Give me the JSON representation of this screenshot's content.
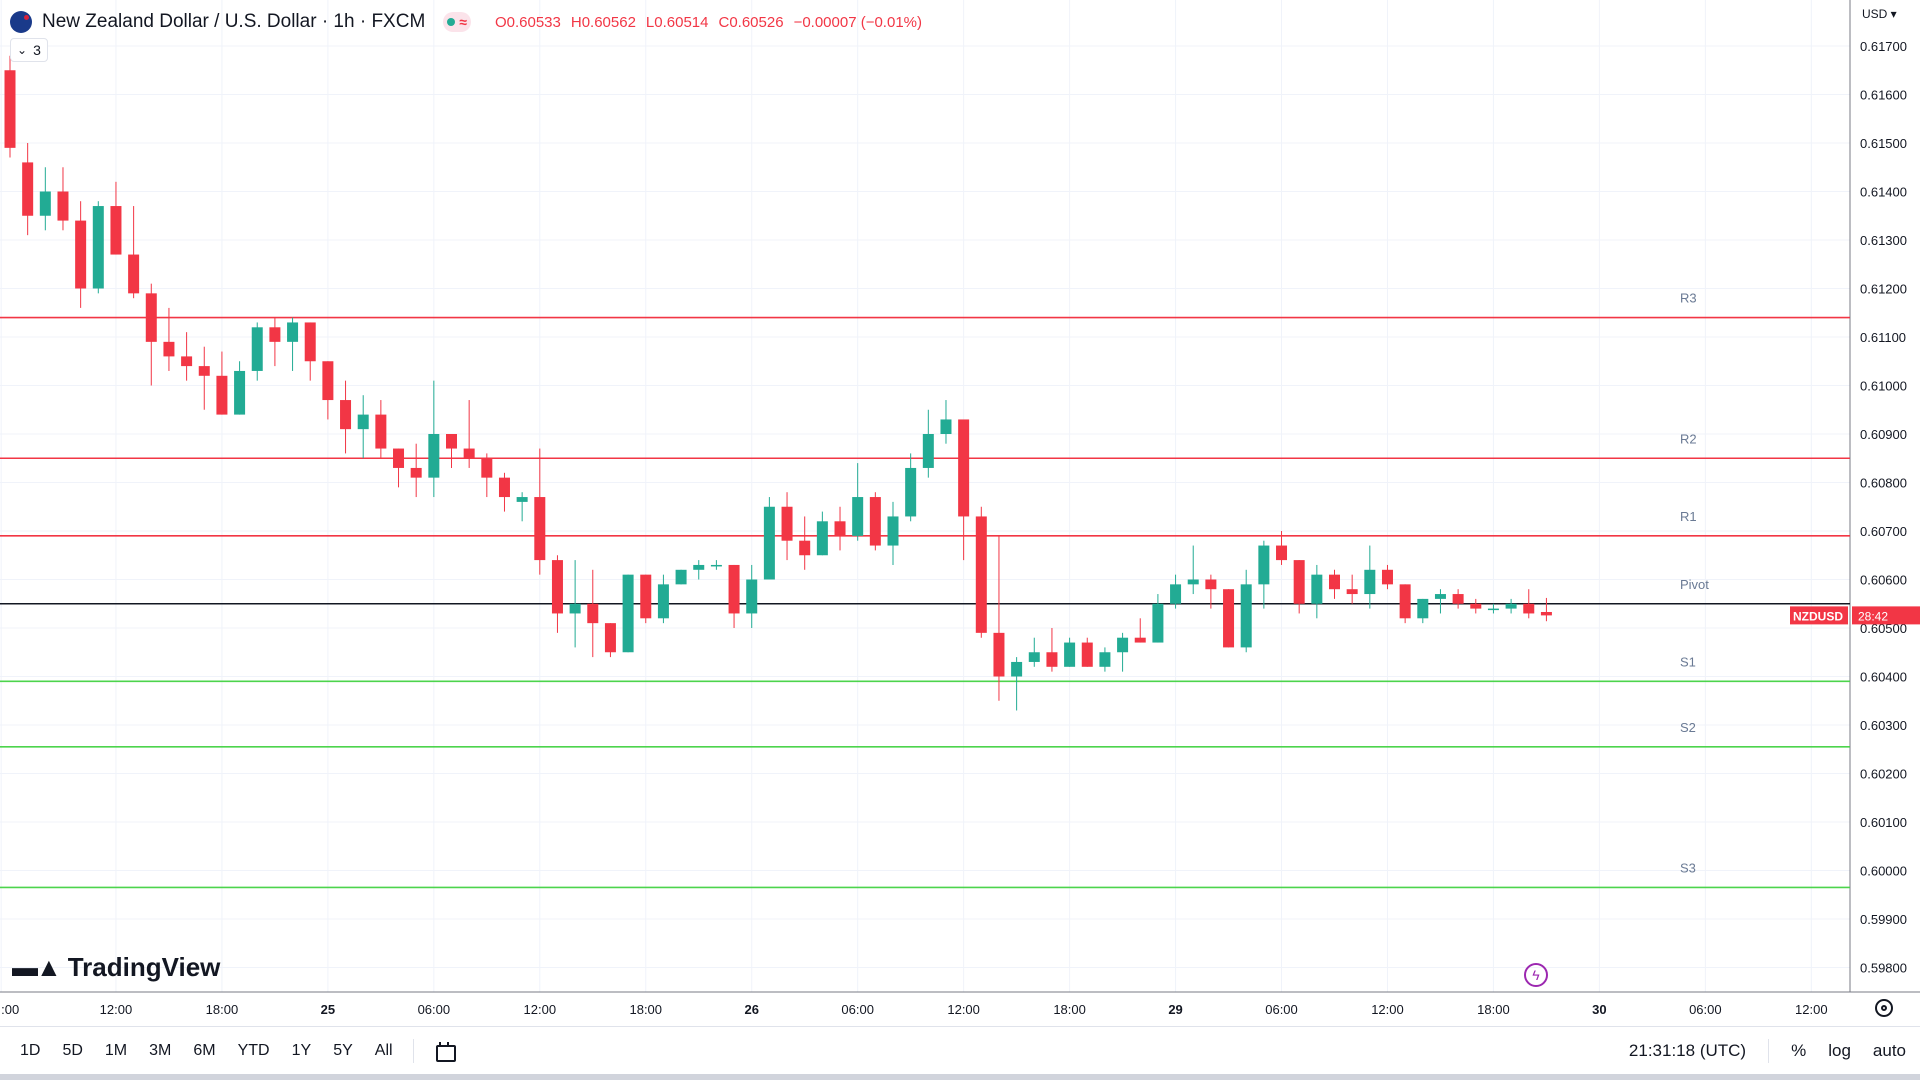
{
  "header": {
    "title": "New Zealand Dollar / U.S. Dollar · 1h · FXCM",
    "open": "O0.60533",
    "high": "H0.60562",
    "low": "L0.60514",
    "close": "C0.60526",
    "change": "−0.00007 (−0.01%)",
    "indicator_count": "3"
  },
  "price_scale": {
    "currency": "USD"
  },
  "brand": {
    "logo_text": "TradingView"
  },
  "colors": {
    "up": "#22ab94",
    "down": "#f23645",
    "resistance": "#f23645",
    "support": "#4cd44c",
    "pivot": "#131722",
    "grid": "#f0f3fa"
  },
  "toolbar": {
    "timeframes": [
      "1D",
      "5D",
      "1M",
      "3M",
      "6M",
      "YTD",
      "1Y",
      "5Y",
      "All"
    ],
    "clock": "21:31:18 (UTC)",
    "percent": "%",
    "log": "log",
    "auto": "auto"
  },
  "chart_data": {
    "type": "candlestick",
    "symbol": "NZDUSD",
    "interval": "1h",
    "grid": true,
    "y_axis": {
      "ylim": [
        0.5975,
        0.6177
      ],
      "ticks": [
        0.617,
        0.616,
        0.615,
        0.614,
        0.613,
        0.612,
        0.611,
        0.61,
        0.609,
        0.608,
        0.607,
        0.606,
        0.605,
        0.604,
        0.603,
        0.602,
        0.601,
        0.6,
        0.599,
        0.598
      ],
      "tick_labels": [
        "0.61700",
        "0.61600",
        "0.61500",
        "0.61400",
        "0.61300",
        "0.61200",
        "0.61100",
        "0.61000",
        "0.60900",
        "0.60800",
        "0.60700",
        "0.60600",
        "0.60500",
        "0.60400",
        "0.60300",
        "0.60200",
        "0.60100",
        "0.60000",
        "0.59900",
        "0.59800"
      ]
    },
    "x_axis": {
      "tick_labels": [
        {
          "label": ":00",
          "bar": -0.5
        },
        {
          "label": "12:00",
          "bar": 6
        },
        {
          "label": "18:00",
          "bar": 12
        },
        {
          "label": "25",
          "bar": 18
        },
        {
          "label": "06:00",
          "bar": 24
        },
        {
          "label": "12:00",
          "bar": 30
        },
        {
          "label": "18:00",
          "bar": 36
        },
        {
          "label": "26",
          "bar": 42
        },
        {
          "label": "06:00",
          "bar": 48
        },
        {
          "label": "12:00",
          "bar": 54
        },
        {
          "label": "18:00",
          "bar": 60
        },
        {
          "label": "29",
          "bar": 66
        },
        {
          "label": "06:00",
          "bar": 72
        },
        {
          "label": "12:00",
          "bar": 78
        },
        {
          "label": "18:00",
          "bar": 84
        },
        {
          "label": "30",
          "bar": 90
        },
        {
          "label": "06:00",
          "bar": 96
        },
        {
          "label": "12:00",
          "bar": 102
        }
      ]
    },
    "candles": [
      [
        0.6165,
        0.6168,
        0.6147,
        0.6149
      ],
      [
        0.6146,
        0.615,
        0.6131,
        0.6135
      ],
      [
        0.6135,
        0.6145,
        0.6132,
        0.614
      ],
      [
        0.614,
        0.6145,
        0.6132,
        0.6134
      ],
      [
        0.6134,
        0.6138,
        0.6116,
        0.612
      ],
      [
        0.612,
        0.6138,
        0.6119,
        0.6137
      ],
      [
        0.6137,
        0.6142,
        0.6127,
        0.6127
      ],
      [
        0.6127,
        0.6137,
        0.6118,
        0.6119
      ],
      [
        0.6119,
        0.6121,
        0.61,
        0.6109
      ],
      [
        0.6109,
        0.6116,
        0.6103,
        0.6106
      ],
      [
        0.6106,
        0.6111,
        0.6101,
        0.6104
      ],
      [
        0.6104,
        0.6108,
        0.6095,
        0.6102
      ],
      [
        0.6102,
        0.6107,
        0.6094,
        0.6094
      ],
      [
        0.6094,
        0.6105,
        0.6094,
        0.6103
      ],
      [
        0.6103,
        0.6113,
        0.6101,
        0.6112
      ],
      [
        0.6112,
        0.6114,
        0.6104,
        0.6109
      ],
      [
        0.6109,
        0.6114,
        0.6103,
        0.6113
      ],
      [
        0.6113,
        0.6113,
        0.6101,
        0.6105
      ],
      [
        0.6105,
        0.6105,
        0.6093,
        0.6097
      ],
      [
        0.6097,
        0.6101,
        0.6086,
        0.6091
      ],
      [
        0.6091,
        0.6098,
        0.6085,
        0.6094
      ],
      [
        0.6094,
        0.6097,
        0.6085,
        0.6087
      ],
      [
        0.6087,
        0.6087,
        0.6079,
        0.6083
      ],
      [
        0.6083,
        0.6088,
        0.6077,
        0.6081
      ],
      [
        0.6081,
        0.6101,
        0.6077,
        0.609
      ],
      [
        0.609,
        0.609,
        0.6083,
        0.6087
      ],
      [
        0.6087,
        0.6097,
        0.6083,
        0.6085
      ],
      [
        0.6085,
        0.6086,
        0.6077,
        0.6081
      ],
      [
        0.6081,
        0.6082,
        0.6074,
        0.6077
      ],
      [
        0.6076,
        0.6078,
        0.6072,
        0.6077
      ],
      [
        0.6077,
        0.6087,
        0.6061,
        0.6064
      ],
      [
        0.6064,
        0.6065,
        0.6049,
        0.6053
      ],
      [
        0.6053,
        0.6064,
        0.6046,
        0.6055
      ],
      [
        0.6055,
        0.6062,
        0.6044,
        0.6051
      ],
      [
        0.6051,
        0.6051,
        0.6044,
        0.6045
      ],
      [
        0.6045,
        0.6061,
        0.6045,
        0.6061
      ],
      [
        0.6061,
        0.6061,
        0.6051,
        0.6052
      ],
      [
        0.6052,
        0.6061,
        0.6051,
        0.6059
      ],
      [
        0.6059,
        0.6062,
        0.6059,
        0.6062
      ],
      [
        0.6062,
        0.6064,
        0.606,
        0.6063
      ],
      [
        0.6063,
        0.6064,
        0.6062,
        0.6063
      ],
      [
        0.6063,
        0.6063,
        0.605,
        0.6053
      ],
      [
        0.6053,
        0.6063,
        0.605,
        0.606
      ],
      [
        0.606,
        0.6077,
        0.606,
        0.6075
      ],
      [
        0.6075,
        0.6078,
        0.6064,
        0.6068
      ],
      [
        0.6068,
        0.6073,
        0.6062,
        0.6065
      ],
      [
        0.6065,
        0.6074,
        0.6065,
        0.6072
      ],
      [
        0.6072,
        0.6075,
        0.6066,
        0.6069
      ],
      [
        0.6069,
        0.6084,
        0.6068,
        0.6077
      ],
      [
        0.6077,
        0.6078,
        0.6066,
        0.6067
      ],
      [
        0.6067,
        0.6076,
        0.6063,
        0.6073
      ],
      [
        0.6073,
        0.6086,
        0.6072,
        0.6083
      ],
      [
        0.6083,
        0.6095,
        0.6081,
        0.609
      ],
      [
        0.609,
        0.6097,
        0.6088,
        0.6093
      ],
      [
        0.6093,
        0.6093,
        0.6064,
        0.6073
      ],
      [
        0.6073,
        0.6075,
        0.6048,
        0.6049
      ],
      [
        0.6049,
        0.6069,
        0.6035,
        0.604
      ],
      [
        0.604,
        0.6044,
        0.6033,
        0.6043
      ],
      [
        0.6043,
        0.6048,
        0.6042,
        0.6045
      ],
      [
        0.6045,
        0.605,
        0.6041,
        0.6042
      ],
      [
        0.6042,
        0.6048,
        0.6042,
        0.6047
      ],
      [
        0.6047,
        0.6048,
        0.6042,
        0.6042
      ],
      [
        0.6042,
        0.6046,
        0.6041,
        0.6045
      ],
      [
        0.6045,
        0.6049,
        0.6041,
        0.6048
      ],
      [
        0.6048,
        0.6052,
        0.6047,
        0.6047
      ],
      [
        0.6047,
        0.6057,
        0.6047,
        0.6055
      ],
      [
        0.6055,
        0.6061,
        0.6054,
        0.6059
      ],
      [
        0.6059,
        0.6067,
        0.6057,
        0.606
      ],
      [
        0.606,
        0.6061,
        0.6054,
        0.6058
      ],
      [
        0.6058,
        0.6058,
        0.6046,
        0.6046
      ],
      [
        0.6046,
        0.6062,
        0.6045,
        0.6059
      ],
      [
        0.6059,
        0.6068,
        0.6054,
        0.6067
      ],
      [
        0.6067,
        0.607,
        0.6063,
        0.6064
      ],
      [
        0.6064,
        0.6064,
        0.6053,
        0.6055
      ],
      [
        0.6055,
        0.6063,
        0.6052,
        0.6061
      ],
      [
        0.6061,
        0.6062,
        0.6056,
        0.6058
      ],
      [
        0.6058,
        0.6061,
        0.6055,
        0.6057
      ],
      [
        0.6057,
        0.6067,
        0.6054,
        0.6062
      ],
      [
        0.6062,
        0.6063,
        0.6058,
        0.6059
      ],
      [
        0.6059,
        0.6059,
        0.6051,
        0.6052
      ],
      [
        0.6052,
        0.6056,
        0.6051,
        0.6056
      ],
      [
        0.6056,
        0.6058,
        0.6053,
        0.6057
      ],
      [
        0.6057,
        0.6058,
        0.6054,
        0.6055
      ],
      [
        0.6055,
        0.6056,
        0.6053,
        0.6054
      ],
      [
        0.6054,
        0.6055,
        0.6053,
        0.6054
      ],
      [
        0.6054,
        0.6056,
        0.6053,
        0.6055
      ],
      [
        0.6055,
        0.6058,
        0.6052,
        0.6053
      ],
      [
        0.60533,
        0.60562,
        0.60514,
        0.60526
      ]
    ],
    "levels": [
      {
        "label": "R3",
        "value": 0.6114,
        "kind": "resistance"
      },
      {
        "label": "R2",
        "value": 0.6085,
        "kind": "resistance"
      },
      {
        "label": "R1",
        "value": 0.6069,
        "kind": "resistance"
      },
      {
        "label": "Pivot",
        "value": 0.6055,
        "kind": "pivot"
      },
      {
        "label": "S1",
        "value": 0.6039,
        "kind": "support"
      },
      {
        "label": "S2",
        "value": 0.60255,
        "kind": "support"
      },
      {
        "label": "S3",
        "value": 0.59965,
        "kind": "support"
      }
    ],
    "last_price": {
      "symbol": "NZDUSD",
      "value": 0.60526,
      "countdown": "28:42"
    }
  }
}
